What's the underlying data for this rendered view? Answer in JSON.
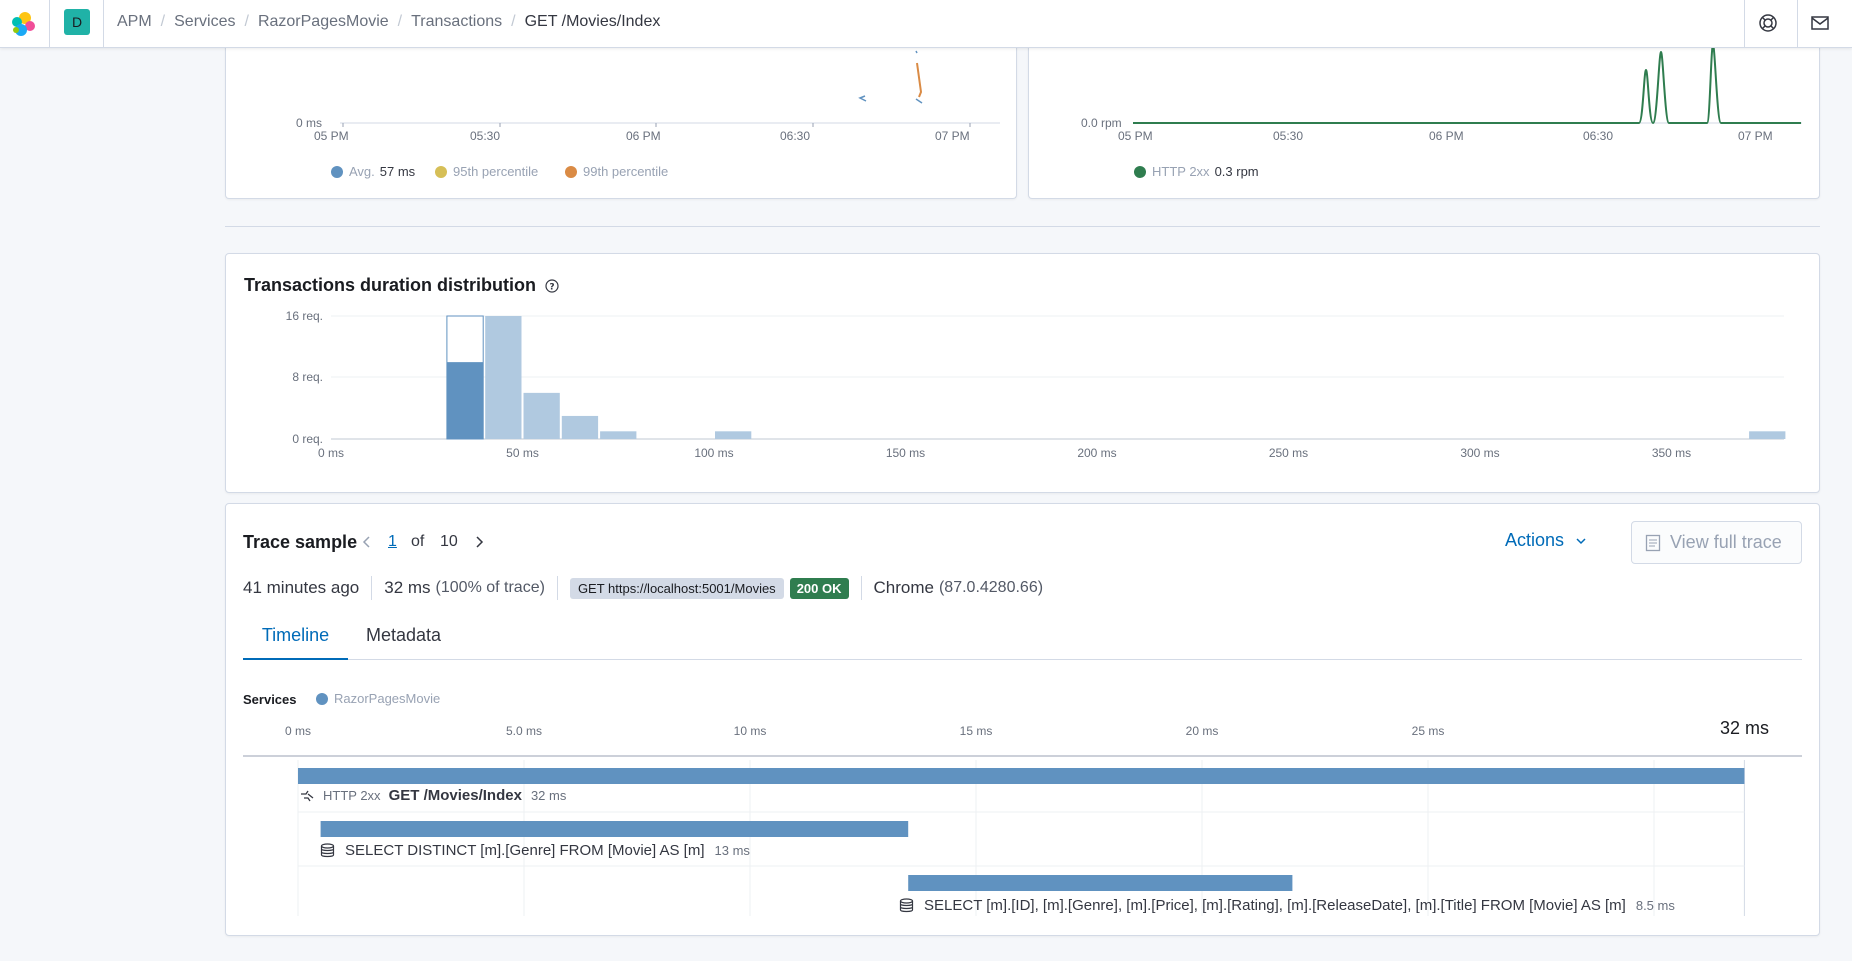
{
  "header": {
    "space_initial": "D",
    "breadcrumbs": [
      "APM",
      "Services",
      "RazorPagesMovie",
      "Transactions",
      "GET /Movies/Index"
    ],
    "icons": [
      "elastic-logo",
      "help-icon",
      "newsfeed-icon"
    ]
  },
  "latency_chart": {
    "y_tick": "0 ms",
    "x_ticks": [
      "05 PM",
      "05:30",
      "06 PM",
      "06:30",
      "07 PM"
    ],
    "legend": [
      {
        "label": "Avg.",
        "value": "57 ms",
        "color": "#6092c0"
      },
      {
        "label": "95th percentile",
        "value": "",
        "color": "#d6bf57"
      },
      {
        "label": "99th percentile",
        "value": "",
        "color": "#da8b45"
      }
    ]
  },
  "throughput_chart": {
    "y_tick": "0.0 rpm",
    "x_ticks": [
      "05 PM",
      "05:30",
      "06 PM",
      "06:30",
      "07 PM"
    ],
    "legend": [
      {
        "label": "HTTP 2xx",
        "value": "0.3 rpm",
        "color": "#2f7d4f"
      }
    ]
  },
  "distribution": {
    "title": "Transactions duration distribution",
    "chart_data": {
      "type": "bar",
      "ylabel_ticks": [
        "16 req.",
        "8 req.",
        "0 req."
      ],
      "x_ticks": [
        "0 ms",
        "50 ms",
        "100 ms",
        "150 ms",
        "200 ms",
        "250 ms",
        "300 ms",
        "350 ms"
      ],
      "bins_ms": [
        30,
        40,
        50,
        60,
        70,
        100,
        370
      ],
      "values": [
        16,
        16,
        6,
        3,
        1,
        1,
        1
      ],
      "selected_bin_ms": 30,
      "selected_sample_count": 10,
      "ylim": [
        0,
        16
      ]
    }
  },
  "trace_sample": {
    "title": "Trace sample",
    "page": "1",
    "of_label": "of",
    "total": "10",
    "actions_label": "Actions",
    "view_full_trace_label": "View full trace",
    "time_ago": "41 minutes ago",
    "duration": "32 ms",
    "duration_pct": "(100% of trace)",
    "request": "GET https://localhost:5001/Movies",
    "status": "200 OK",
    "browser": "Chrome",
    "browser_version": "(87.0.4280.66)",
    "tabs": [
      "Timeline",
      "Metadata"
    ]
  },
  "timeline": {
    "services_label": "Services",
    "service_name": "RazorPagesMovie",
    "service_color": "#6092c0",
    "x_ticks": [
      "0 ms",
      "5.0 ms",
      "10 ms",
      "15 ms",
      "20 ms",
      "25 ms"
    ],
    "total_label": "32 ms",
    "rows": [
      {
        "prefix": "HTTP 2xx",
        "name": "GET /Movies/Index",
        "duration": "32 ms",
        "start_ms": 0,
        "dur_ms": 32
      },
      {
        "prefix": "",
        "name": "SELECT DISTINCT [m].[Genre] FROM [Movie] AS [m]",
        "duration": "13 ms",
        "start_ms": 0.5,
        "dur_ms": 13
      },
      {
        "prefix": "",
        "name": "SELECT [m].[ID], [m].[Genre], [m].[Price], [m].[Rating], [m].[ReleaseDate], [m].[Title] FROM [Movie] AS [m]",
        "duration": "8.5 ms",
        "start_ms": 13.5,
        "dur_ms": 8.5
      }
    ]
  }
}
